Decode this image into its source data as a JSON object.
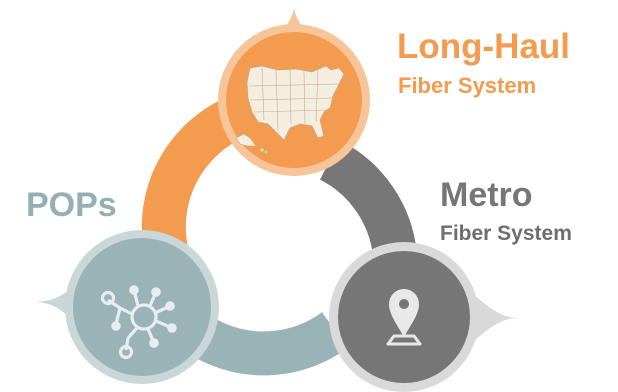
{
  "nodes": {
    "long_haul": {
      "title": "Long-Haul",
      "subtitle": "Fiber System",
      "icon": "usa-map-icon",
      "color": "#f39b4e"
    },
    "metro": {
      "title": "Metro",
      "subtitle": "Fiber System",
      "icon": "map-pin-icon",
      "color": "#777777"
    },
    "pops": {
      "title": "POPs",
      "icon": "network-hub-icon",
      "color": "#9ab3b6"
    }
  },
  "colors": {
    "orange": "#f39b4e",
    "orange_light": "#f8c59a",
    "gray": "#767676",
    "gray_light": "#d9d9d9",
    "teal": "#9ab3b6",
    "teal_light": "#c9d7d9"
  }
}
